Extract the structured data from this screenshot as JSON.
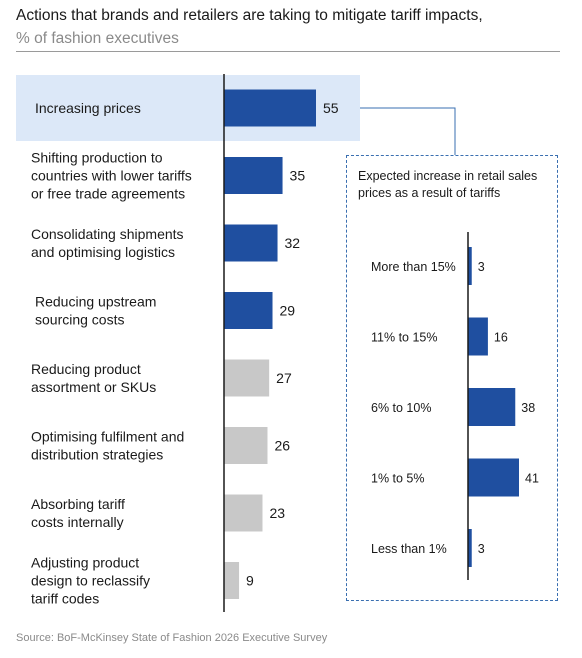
{
  "header": {
    "title": "Actions that brands and retailers are taking to mitigate tariff impacts,",
    "subtitle": "% of fashion executives"
  },
  "footer": {
    "source": "Source: BoF-McKinsey State of Fashion 2026 Executive Survey"
  },
  "colors": {
    "primary_bar": "#1f4fa0",
    "secondary_bar": "#c8c8c8",
    "highlight": "#dce8f8",
    "connector": "#3a6fb0"
  },
  "chart_data": [
    {
      "type": "bar",
      "orientation": "horizontal",
      "title": "Actions that brands and retailers are taking to mitigate tariff impacts,",
      "subtitle": "% of fashion executives",
      "categories": [
        "Increasing prices",
        "Shifting production to countries with lower tariffs or free trade agreements",
        "Consolidating shipments and optimising logistics",
        "Reducing upstream sourcing costs",
        "Reducing product assortment or SKUs",
        "Optimising fulfilment and distribution strategies",
        "Absorbing tariff costs internally",
        "Adjusting product design to reclassify tariff codes"
      ],
      "category_lines": [
        [
          "Increasing prices"
        ],
        [
          "Shifting production to",
          "countries with lower tariffs",
          "or free trade agreements"
        ],
        [
          "Consolidating shipments",
          "and optimising logistics"
        ],
        [
          "Reducing upstream",
          "sourcing costs"
        ],
        [
          "Reducing product",
          "assortment or SKUs"
        ],
        [
          "Optimising fulfilment and",
          "distribution strategies"
        ],
        [
          "Absorbing tariff",
          "costs internally"
        ],
        [
          "Adjusting product",
          "design to reclassify",
          "tariff codes"
        ]
      ],
      "values": [
        55,
        35,
        32,
        29,
        27,
        26,
        23,
        9
      ],
      "bar_colors": [
        "#1f4fa0",
        "#1f4fa0",
        "#1f4fa0",
        "#1f4fa0",
        "#c8c8c8",
        "#c8c8c8",
        "#c8c8c8",
        "#c8c8c8"
      ],
      "highlighted_category": "Increasing prices",
      "xlim": [
        0,
        60
      ],
      "grid": false,
      "legend": "none"
    },
    {
      "type": "bar",
      "orientation": "horizontal",
      "title": "Expected increase in retail sales prices as a result of tariffs",
      "title_lines": [
        "Expected increase in retail",
        "sales prices as a result of tariffs"
      ],
      "categories": [
        "More than 15%",
        "11% to 15%",
        "6% to 10%",
        "1% to 5%",
        "Less than 1%"
      ],
      "values": [
        3,
        16,
        38,
        41,
        3
      ],
      "bar_color": "#1f4fa0",
      "xlim": [
        0,
        45
      ],
      "grid": false,
      "legend": "none"
    }
  ]
}
